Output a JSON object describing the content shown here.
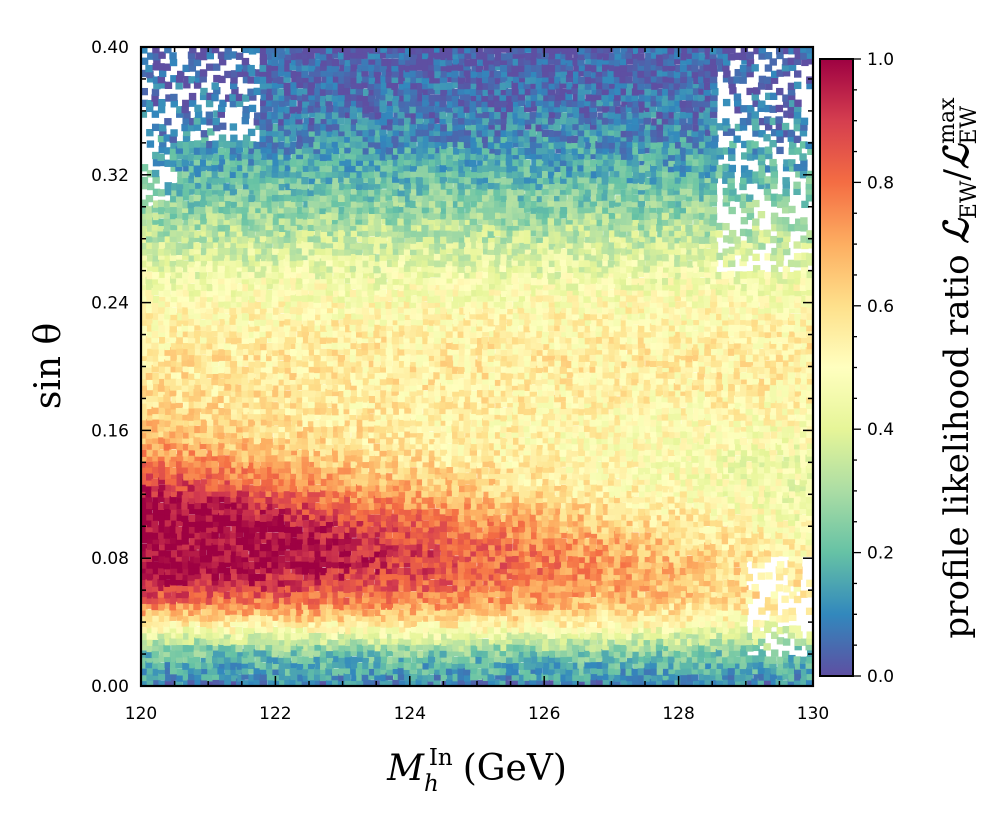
{
  "chart_data": {
    "type": "heatmap",
    "xlabel": {
      "base": "M",
      "sub": "h",
      "sup": "In",
      "unit": "(GeV)"
    },
    "ylabel": "sin θ",
    "xlim": [
      120,
      130
    ],
    "ylim": [
      0.0,
      0.4
    ],
    "xticks": [
      "120",
      "122",
      "124",
      "126",
      "128",
      "130"
    ],
    "yticks": [
      "0.00",
      "0.08",
      "0.16",
      "0.24",
      "0.32",
      "0.40"
    ],
    "colorbar": {
      "label_prefix": "profile likelihood ratio ",
      "symbol": "ℒ",
      "num_sub": "EW",
      "den_sub": "EW",
      "den_sup": "max",
      "range": [
        0.0,
        1.0
      ],
      "ticks": [
        "0.0",
        "0.2",
        "0.4",
        "0.6",
        "0.8",
        "1.0"
      ],
      "colormap": "Spectral_r",
      "colormap_hex": [
        "#5e4fa2",
        "#3288bd",
        "#66c2a5",
        "#abdda4",
        "#e6f598",
        "#ffffbf",
        "#fee08b",
        "#fdae61",
        "#f46d43",
        "#d53e4f",
        "#9e0142"
      ]
    },
    "trend": "Ratio near 1 for sinθ ≈ 0.03–0.12 at low M_h (120–124 GeV), ~0.5 around sinθ ≈ 0.17–0.22, decreasing to ~0.1 near sinθ = 0.40; sparse coverage at the top corners and at high M_h near sinθ ≈ 0.05."
  }
}
